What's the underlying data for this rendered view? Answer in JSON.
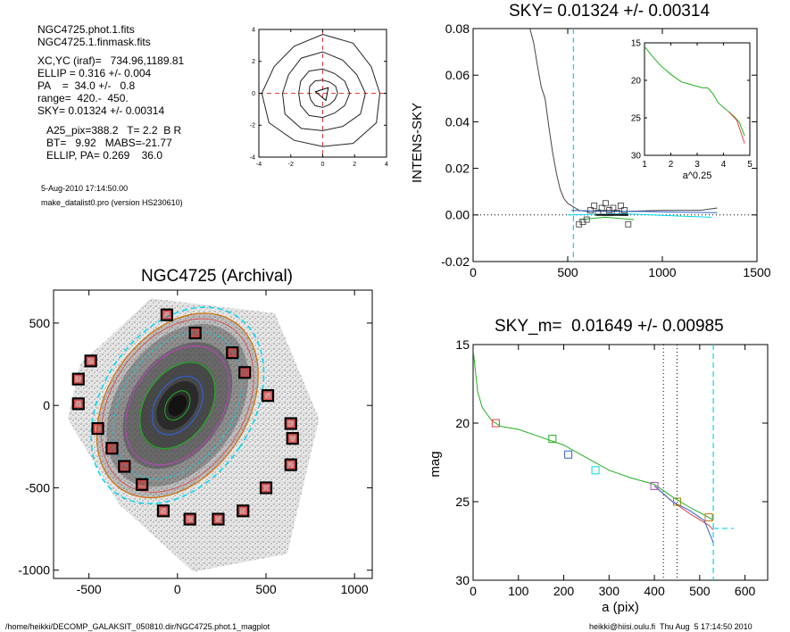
{
  "header": {
    "lines": [
      "NGC4725.phot.1.fits",
      "NGC4725.1.finmask.fits",
      "XC,YC (iraf)=   734.96,1189.81",
      "ELLIP = 0.316 +/- 0.004",
      "PA    =  34.0 +/-   0.8",
      "range=  420.-  450.",
      "SKY= 0.01324 +/- 0.00314",
      "A25_pix=388.2   T= 2.2  B R",
      "BT=   9.92   MABS=-21.77",
      "ELLIP, PA= 0.269    36.0"
    ],
    "date": "5-Aug-2010 17:14:50.00",
    "program": "make_datalist0.pro (version HS230610)"
  },
  "footer": {
    "path": "/home/heikki/DECOMP_GALAKSIT_050810.dir/NGC4725.phot.1_magplot",
    "user": "heikki@hiisi.oulu.fi  Thu Aug  5 17:14:50 2010"
  },
  "colors": {
    "cyan": "#00d8f0",
    "red": "#e04040",
    "green": "#20b020",
    "blue": "#3060d0",
    "magenta": "#c040c0",
    "orange": "#d07000",
    "olive": "#909000"
  },
  "chart_data": [
    {
      "id": "contour-plot",
      "type": "contour",
      "title": "",
      "xlim": [
        -4,
        4
      ],
      "ylim": [
        -4,
        4
      ],
      "xticks": [
        -4,
        -2,
        0,
        2,
        4
      ],
      "yticks": [
        -4,
        -2,
        0,
        2,
        4
      ],
      "contours": [
        {
          "radius": 3.7
        },
        {
          "radius": 2.6
        },
        {
          "radius": 1.6
        },
        {
          "radius": 0.9
        }
      ]
    },
    {
      "id": "sky-profile",
      "type": "line",
      "title": "SKY= 0.01324 +/- 0.00314",
      "xlabel": "",
      "ylabel": "INTENS-SKY",
      "xlim": [
        0,
        1500
      ],
      "ylim": [
        -0.02,
        0.08
      ],
      "xticks": [
        0,
        500,
        1000,
        1500
      ],
      "yticks": [
        -0.02,
        0.0,
        0.02,
        0.04,
        0.06,
        0.08
      ],
      "ytick_labels": [
        "-0.02",
        "0.00",
        "0.02",
        "0.04",
        "0.06",
        "0.08"
      ],
      "series": [
        {
          "color": "#444",
          "x": [
            300,
            320,
            340,
            360,
            380,
            400,
            420,
            440,
            460,
            480,
            500,
            520,
            540,
            560,
            600,
            700,
            800,
            1000,
            1200,
            1290
          ],
          "y": [
            0.08,
            0.074,
            0.064,
            0.055,
            0.05,
            0.038,
            0.027,
            0.018,
            0.011,
            0.007,
            0.005,
            0.004,
            0.003,
            0.002,
            0.0015,
            0.002,
            0.0015,
            0.002,
            0.002,
            0.003
          ]
        },
        {
          "color": "#3060d0",
          "x": [
            520,
            700,
            900,
            1100,
            1290
          ],
          "y": [
            0.002,
            0.0015,
            0.0015,
            0.0012,
            0.001
          ]
        },
        {
          "color": "#20b020",
          "x": [
            560,
            700,
            850
          ],
          "y": [
            -0.002,
            -0.001,
            -0.002
          ]
        },
        {
          "color": "#00d8f0",
          "x": [
            500,
            800,
            1100,
            1260
          ],
          "y": [
            0.0,
            0.0005,
            -0.0005,
            -0.001
          ]
        }
      ],
      "sky_line": 0.0,
      "cut_x": 530,
      "squares": {
        "x": [
          560,
          580,
          600,
          620,
          640,
          660,
          680,
          700,
          720,
          740,
          760,
          780,
          800,
          820
        ],
        "y": [
          -0.004,
          -0.003,
          -0.002,
          0.002,
          0.004,
          0.001,
          0.003,
          0.005,
          0.002,
          0.003,
          0.001,
          0.004,
          0.002,
          -0.004
        ]
      },
      "inset": {
        "xlabel": "a^0.25",
        "xlim": [
          1,
          5
        ],
        "ylim": [
          15,
          30
        ],
        "xticks": [
          1,
          2,
          3,
          4,
          5
        ],
        "yticks": [
          15,
          20,
          25,
          30
        ],
        "x": [
          1.0,
          1.3,
          1.6,
          2.0,
          2.4,
          2.8,
          3.2,
          3.4,
          3.6,
          3.8,
          4.0,
          4.2,
          4.4,
          4.6,
          4.8
        ],
        "y": [
          15.5,
          16.8,
          18.0,
          19.2,
          20.2,
          20.6,
          21.0,
          21.0,
          21.8,
          23.0,
          23.6,
          24.2,
          24.8,
          25.6,
          27.4
        ]
      }
    },
    {
      "id": "archival-image",
      "type": "image",
      "title": "NGC4725 (Archival)",
      "xlim": [
        -700,
        1100
      ],
      "ylim": [
        -1050,
        700
      ],
      "xticks": [
        -500,
        0,
        500,
        1000
      ],
      "yticks": [
        -1000,
        -500,
        0,
        500
      ],
      "xtick_labels": [
        "-500",
        "0",
        "500",
        "1000"
      ],
      "ytick_labels": [
        "-1000",
        "-500",
        "0",
        "500"
      ],
      "galaxy_center": [
        0,
        0
      ],
      "masks": {
        "x": [
          -60,
          100,
          310,
          380,
          510,
          640,
          650,
          640,
          500,
          370,
          230,
          70,
          -80,
          -200,
          -300,
          -370,
          -450,
          -560,
          -560,
          -490
        ],
        "y": [
          550,
          440,
          320,
          200,
          60,
          -110,
          -200,
          -360,
          -500,
          -640,
          -690,
          -690,
          -640,
          -480,
          -370,
          -260,
          -140,
          10,
          160,
          270
        ]
      }
    },
    {
      "id": "magnitude-profile",
      "type": "line",
      "title": "SKY_m=  0.01649 +/- 0.00985",
      "xlabel": "a (pix)",
      "ylabel": "mag",
      "xlim": [
        0,
        650
      ],
      "ylim": [
        15,
        30
      ],
      "xticks": [
        0,
        100,
        200,
        300,
        400,
        500,
        600
      ],
      "yticks": [
        15,
        20,
        25,
        30
      ],
      "series": [
        {
          "color": "#20b020",
          "x": [
            0,
            10,
            20,
            40,
            60,
            100,
            150,
            200,
            250,
            300,
            350,
            400,
            440,
            480,
            520,
            530
          ],
          "y": [
            15.3,
            18.0,
            19.0,
            19.8,
            20.2,
            20.4,
            20.9,
            21.4,
            22.2,
            23.0,
            23.5,
            23.9,
            24.7,
            25.4,
            26.0,
            26.2
          ]
        },
        {
          "color": "#e04040",
          "x": [
            400,
            440,
            480,
            520,
            530
          ],
          "y": [
            24.0,
            25.0,
            25.8,
            26.5,
            26.8
          ]
        },
        {
          "color": "#3060d0",
          "x": [
            400,
            440,
            480,
            510,
            530
          ],
          "y": [
            24.0,
            25.0,
            25.6,
            26.2,
            27.6
          ]
        }
      ],
      "squares": [
        {
          "x": 50,
          "y": 20.0,
          "color": "#e04040"
        },
        {
          "x": 175,
          "y": 21.0,
          "color": "#20b020"
        },
        {
          "x": 210,
          "y": 22.0,
          "color": "#3060d0"
        },
        {
          "x": 270,
          "y": 23.0,
          "color": "#00d8f0"
        },
        {
          "x": 400,
          "y": 24.0,
          "color": "#c040c0"
        },
        {
          "x": 450,
          "y": 25.0,
          "color": "#909000"
        },
        {
          "x": 520,
          "y": 26.0,
          "color": "#d07000"
        }
      ],
      "range_lines": [
        420,
        450
      ],
      "cut_x": 530,
      "sky_mag": 26.7
    }
  ]
}
